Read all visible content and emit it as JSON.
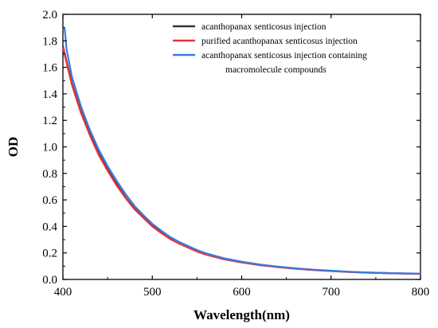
{
  "chart_data": {
    "type": "line",
    "xlabel": "Wavelength(nm)",
    "ylabel": "OD",
    "xlim": [
      400,
      800
    ],
    "ylim": [
      0.0,
      2.0
    ],
    "x_ticks": [
      400,
      500,
      600,
      700,
      800
    ],
    "y_ticks": [
      0.0,
      0.2,
      0.4,
      0.6,
      0.8,
      1.0,
      1.2,
      1.4,
      1.6,
      1.8,
      2.0
    ],
    "x_tick_labels": [
      "400",
      "500",
      "600",
      "700",
      "800"
    ],
    "y_tick_labels": [
      "0.0",
      "0.2",
      "0.4",
      "0.6",
      "0.8",
      "1.0",
      "1.2",
      "1.4",
      "1.6",
      "1.8",
      "2.0"
    ],
    "grid": false,
    "legend_position": "top-right",
    "legend_lines": [
      [
        "acanthopanax senticosus injection"
      ],
      [
        "purified acanthopanax senticosus injection"
      ],
      [
        "acanthopanax senticosus injection containing",
        "macromolecule compounds"
      ]
    ],
    "series": [
      {
        "name": "acanthopanax senticosus injection",
        "color": "#333333",
        "x": [
          400,
          410,
          420,
          430,
          440,
          450,
          460,
          470,
          480,
          490,
          500,
          510,
          520,
          530,
          540,
          550,
          560,
          580,
          600,
          620,
          640,
          660,
          680,
          700,
          720,
          740,
          760,
          780,
          800
        ],
        "y": [
          1.76,
          1.48,
          1.27,
          1.1,
          0.95,
          0.83,
          0.72,
          0.62,
          0.535,
          0.47,
          0.405,
          0.355,
          0.31,
          0.275,
          0.245,
          0.215,
          0.19,
          0.155,
          0.13,
          0.11,
          0.095,
          0.082,
          0.072,
          0.064,
          0.057,
          0.052,
          0.048,
          0.045,
          0.043
        ]
      },
      {
        "name": "purified acanthopanax senticosus injection",
        "color": "#e8323a",
        "x": [
          400,
          410,
          420,
          430,
          440,
          450,
          460,
          470,
          480,
          490,
          500,
          510,
          520,
          530,
          540,
          550,
          560,
          580,
          600,
          620,
          640,
          660,
          680,
          700,
          720,
          740,
          760,
          780,
          800
        ],
        "y": [
          1.75,
          1.47,
          1.26,
          1.09,
          0.94,
          0.82,
          0.71,
          0.615,
          0.53,
          0.465,
          0.4,
          0.35,
          0.305,
          0.27,
          0.24,
          0.21,
          0.187,
          0.152,
          0.128,
          0.108,
          0.093,
          0.081,
          0.071,
          0.063,
          0.056,
          0.051,
          0.047,
          0.044,
          0.042
        ]
      },
      {
        "name": "acanthopanax senticosus injection containing macromolecule compounds",
        "color": "#3a7be0",
        "x": [
          400,
          402,
          404,
          410,
          420,
          430,
          440,
          450,
          460,
          470,
          480,
          490,
          500,
          510,
          520,
          530,
          540,
          550,
          560,
          580,
          600,
          620,
          640,
          660,
          680,
          700,
          720,
          740,
          760,
          780,
          800
        ],
        "y": [
          1.88,
          1.89,
          1.74,
          1.53,
          1.31,
          1.13,
          0.98,
          0.855,
          0.745,
          0.645,
          0.555,
          0.485,
          0.42,
          0.368,
          0.32,
          0.283,
          0.252,
          0.222,
          0.197,
          0.16,
          0.134,
          0.113,
          0.097,
          0.084,
          0.074,
          0.066,
          0.058,
          0.053,
          0.049,
          0.046,
          0.044
        ]
      }
    ]
  }
}
